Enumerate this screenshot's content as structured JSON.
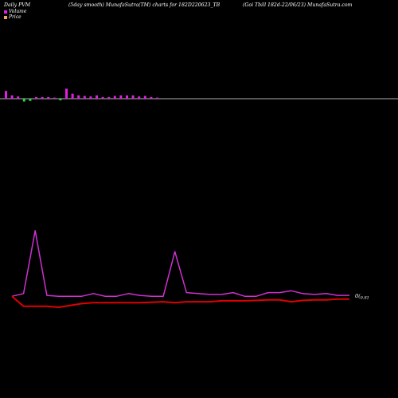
{
  "header": {
    "left": "Daily PVM",
    "center": "(5day smooth) MunafaSutra(TM) charts for 182D220623_TB",
    "right": "(Goi Tbill 182d-22/06/23) MunafaSutra.com"
  },
  "legend": [
    {
      "label": "Volume",
      "color": "#e020e0"
    },
    {
      "label": "Price",
      "color": "#f4a460"
    }
  ],
  "colors": {
    "background": "#000000",
    "up": "#e020e0",
    "down": "#20e040",
    "baseline": "#b0b0b0",
    "price_line": "#e00000",
    "pvm_line": "#d030d0"
  },
  "chart_data": [
    {
      "type": "bar",
      "name": "volume-oscillator",
      "values": [
        14,
        6,
        4,
        -5,
        -4,
        3,
        3,
        3,
        2,
        -3,
        18,
        9,
        6,
        5,
        4,
        6,
        3,
        3,
        5,
        6,
        6,
        6,
        4,
        5,
        3,
        2
      ],
      "ylim": [
        -8,
        20
      ]
    },
    {
      "type": "line",
      "series": [
        {
          "values": [
            0.6,
            0.9,
            7.8,
            0.7,
            0.6,
            0.6,
            0.6,
            0.9,
            0.6,
            0.6,
            0.9,
            0.7,
            0.6,
            0.6,
            5.5,
            1.0,
            0.9,
            0.8,
            0.8,
            1.0,
            0.6,
            0.6,
            1.0,
            1.0,
            1.2,
            0.9,
            0.8,
            0.9,
            0.7,
            0.7
          ]
        },
        {
          "values": [
            0.6,
            -0.5,
            -0.5,
            -0.5,
            -0.6,
            -0.4,
            -0.2,
            -0.1,
            -0.1,
            -0.1,
            -0.1,
            -0.1,
            -0.05,
            0.0,
            -0.1,
            0.0,
            0.0,
            0.0,
            0.1,
            0.1,
            0.1,
            0.15,
            0.2,
            0.2,
            0.0,
            0.15,
            0.2,
            0.2,
            0.3,
            0.3
          ]
        }
      ],
      "last_label": "0(",
      "last_label_sub": "0.81",
      "ylim": [
        -2,
        9
      ]
    }
  ]
}
